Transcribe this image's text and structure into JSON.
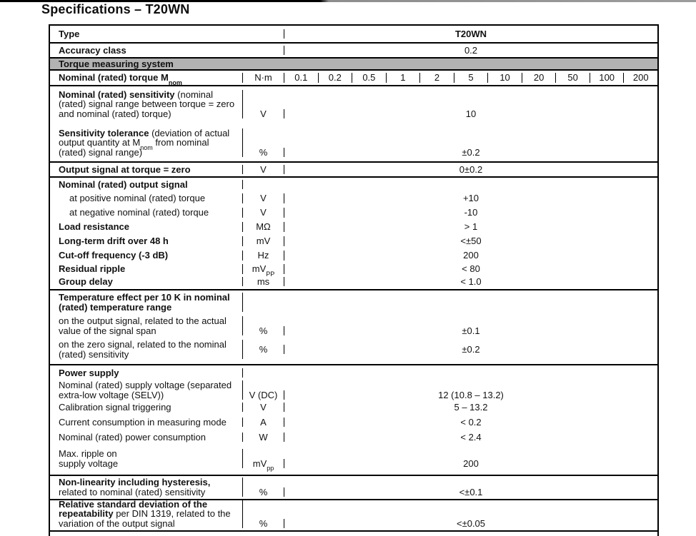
{
  "page": {
    "title": "Specifications – T20WN"
  },
  "colors": {
    "section_header_bg": "#b3b3b3",
    "border": "#000000",
    "text": "#111111"
  },
  "table": {
    "type": {
      "label": "Type",
      "value": "T20WN"
    },
    "accuracy": {
      "label": "Accuracy class",
      "value": "0.2"
    },
    "section_header": "Torque measuring system",
    "torque": {
      "label_pre": "Nominal (rated) torque M",
      "label_sub": "nom",
      "unit": "N·m",
      "values": [
        "0.1",
        "0.2",
        "0.5",
        "1",
        "2",
        "5",
        "10",
        "20",
        "50",
        "100",
        "200"
      ]
    },
    "sensitivity": {
      "bold": "Nominal (rated) sensitivity",
      "text": " (nominal (rated) signal range between torque = zero and nominal (rated) torque)",
      "unit": "V",
      "value": "10"
    },
    "sensitivity_tolerance": {
      "bold": "Sensitivity tolerance",
      "text1": " (deviation of actual output quantity at M",
      "sub": "nom",
      "text2": " from nominal (rated) signal range)",
      "unit": "%",
      "value": "±0.2"
    },
    "output_zero": {
      "label": "Output signal at torque = zero",
      "unit": "V",
      "value": "0±0.2"
    },
    "output_signal": {
      "header": "Nominal (rated) output signal",
      "positive": {
        "label": "at positive nominal (rated) torque",
        "unit": "V",
        "value": "+10"
      },
      "negative": {
        "label": "at negative nominal (rated) torque",
        "unit": "V",
        "value": "-10"
      },
      "load_resistance": {
        "label": "Load resistance",
        "unit": "MΩ",
        "value": "> 1"
      },
      "long_term_drift": {
        "label": "Long-term drift over 48 h",
        "unit": "mV",
        "value": "<±50"
      },
      "cutoff_frequency": {
        "label": "Cut-off frequency (-3 dB)",
        "unit": "Hz",
        "value": "200"
      },
      "residual_ripple": {
        "label": "Residual ripple",
        "unit_pre": "mV",
        "unit_sub": "PP",
        "value": "< 80"
      },
      "group_delay": {
        "label": "Group delay",
        "unit": "ms",
        "value": "< 1.0"
      }
    },
    "temperature": {
      "header": "Temperature effect per 10 K in nominal (rated) temperature range",
      "output": {
        "label": "on the output signal, related to the actual value of the signal span",
        "unit": "%",
        "value": "±0.1"
      },
      "zero": {
        "label": "on the zero signal, related to the nominal (rated) sensitivity",
        "unit": "%",
        "value": "±0.2"
      }
    },
    "power": {
      "header": "Power supply",
      "supply_voltage": {
        "label": "Nominal (rated) supply voltage (separated extra-low voltage (SELV))",
        "unit": "V (DC)",
        "value": "12 (10.8 – 13.2)"
      },
      "calibration": {
        "label": "Calibration signal triggering",
        "unit": "V",
        "value": "5 – 13.2"
      },
      "current": {
        "label": "Current consumption in measuring mode",
        "unit": "A",
        "value": "< 0.2"
      },
      "power_consumption": {
        "label": "Nominal (rated) power consumption",
        "unit": "W",
        "value": "< 2.4"
      },
      "max_ripple": {
        "label": "Max. ripple on\nsupply voltage",
        "unit_pre": "mV",
        "unit_sub": "pp",
        "value": "200"
      }
    },
    "nonlinearity": {
      "bold": "Non-linearity including hysteresis,",
      "text": " related to nominal (rated) sensitivity",
      "unit": "%",
      "value": "<±0.1"
    },
    "repeatability": {
      "bold": "Relative standard deviation of the repeatability",
      "text": " per DIN 1319, related to the variation of the output signal",
      "unit": "%",
      "value": "<±0.05"
    }
  }
}
